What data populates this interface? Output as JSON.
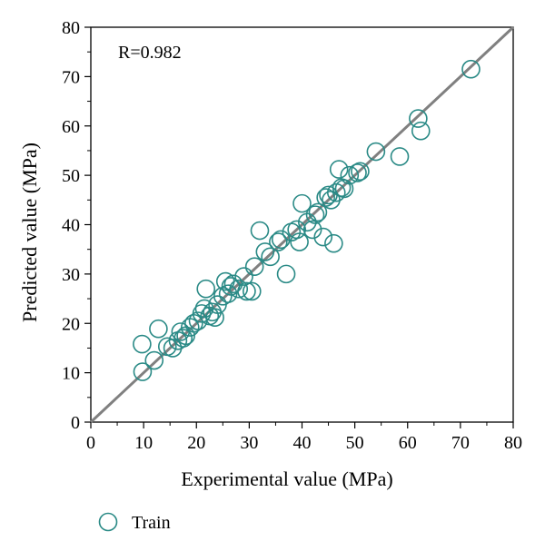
{
  "chart_data": {
    "type": "scatter",
    "annotation": "R=0.982",
    "xlabel": "Experimental value (MPa)",
    "ylabel": "Predicted value (MPa)",
    "xlim": [
      0,
      80
    ],
    "ylim": [
      0,
      80
    ],
    "x_ticks": [
      "0",
      "10",
      "20",
      "30",
      "40",
      "50",
      "60",
      "70",
      "80"
    ],
    "y_ticks": [
      "0",
      "10",
      "20",
      "30",
      "40",
      "50",
      "60",
      "70",
      "80"
    ],
    "grid": false,
    "legend_position": "bottom-left",
    "series": [
      {
        "name": "Train",
        "color": "#2a8a86",
        "marker": "open-circle",
        "points": [
          [
            9.8,
            10.2
          ],
          [
            9.7,
            15.8
          ],
          [
            12.8,
            18.9
          ],
          [
            12.0,
            12.5
          ],
          [
            14.5,
            15.3
          ],
          [
            15.5,
            15.0
          ],
          [
            16.5,
            16.5
          ],
          [
            17.0,
            18.3
          ],
          [
            17.5,
            17.0
          ],
          [
            18.0,
            17.5
          ],
          [
            18.8,
            19.2
          ],
          [
            19.5,
            20.0
          ],
          [
            20.3,
            20.5
          ],
          [
            21.0,
            22.0
          ],
          [
            21.5,
            23.0
          ],
          [
            21.8,
            27.0
          ],
          [
            22.5,
            21.5
          ],
          [
            23.0,
            22.3
          ],
          [
            23.5,
            21.2
          ],
          [
            24.0,
            23.8
          ],
          [
            25.0,
            25.5
          ],
          [
            25.5,
            28.5
          ],
          [
            26.0,
            26.0
          ],
          [
            26.5,
            27.5
          ],
          [
            27.0,
            28.0
          ],
          [
            28.0,
            27.0
          ],
          [
            29.0,
            29.5
          ],
          [
            29.5,
            26.5
          ],
          [
            30.5,
            26.5
          ],
          [
            31.0,
            31.5
          ],
          [
            32.0,
            38.8
          ],
          [
            33.0,
            34.5
          ],
          [
            34.0,
            33.5
          ],
          [
            35.5,
            36.5
          ],
          [
            36.0,
            37.0
          ],
          [
            37.0,
            30.0
          ],
          [
            38.0,
            38.5
          ],
          [
            39.0,
            39.0
          ],
          [
            39.5,
            36.5
          ],
          [
            40.0,
            44.3
          ],
          [
            41.0,
            40.5
          ],
          [
            42.0,
            39.0
          ],
          [
            42.5,
            42.0
          ],
          [
            43.0,
            42.5
          ],
          [
            44.0,
            37.5
          ],
          [
            44.5,
            45.5
          ],
          [
            45.0,
            46.0
          ],
          [
            45.5,
            45.0
          ],
          [
            46.0,
            36.2
          ],
          [
            46.5,
            46.5
          ],
          [
            47.0,
            51.2
          ],
          [
            47.5,
            47.5
          ],
          [
            48.0,
            47.3
          ],
          [
            49.0,
            50.0
          ],
          [
            50.5,
            50.5
          ],
          [
            51.0,
            50.8
          ],
          [
            54.0,
            54.8
          ],
          [
            58.5,
            53.8
          ],
          [
            62.0,
            61.5
          ],
          [
            62.5,
            59.0
          ],
          [
            72.0,
            71.5
          ]
        ]
      }
    ],
    "fit_line": {
      "color": "#808080",
      "from": [
        0,
        0
      ],
      "to": [
        80,
        80
      ]
    }
  }
}
